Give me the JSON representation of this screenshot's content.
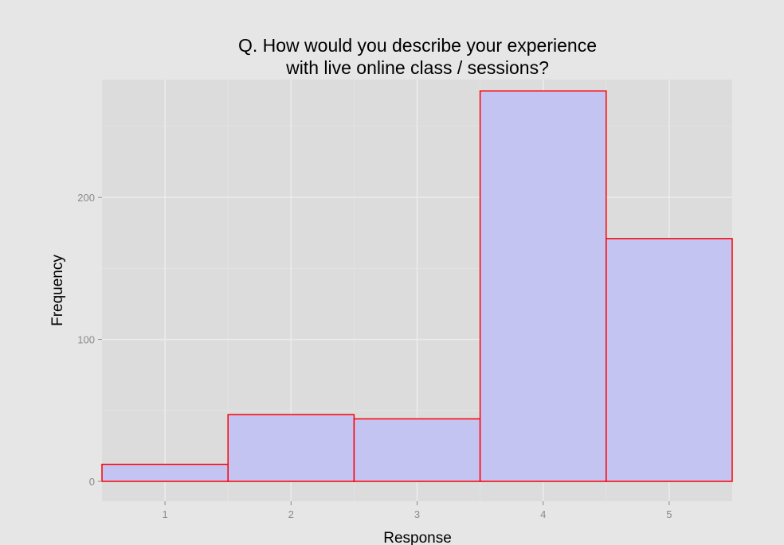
{
  "chart_data": {
    "type": "bar",
    "title": [
      "Q. How would you describe your experience",
      "with live online class / sessions?"
    ],
    "xlabel": "Response",
    "ylabel": "Frequency",
    "categories": [
      "1",
      "2",
      "3",
      "4",
      "5"
    ],
    "values": [
      12,
      47,
      44,
      275,
      171
    ],
    "x_ticks": [
      "1",
      "2",
      "3",
      "4",
      "5"
    ],
    "y_ticks": [
      0,
      100,
      200
    ],
    "xlim": [
      0.5,
      5.5
    ],
    "ylim": [
      -14,
      283
    ],
    "grid": true,
    "legend": "none",
    "colors": {
      "background": "#e6e6e6",
      "panel": "#dcdcdc",
      "grid_major": "#ececec",
      "grid_minor": "#e3e3e3",
      "bar_fill": "#c1c1f4",
      "bar_border": "#ff0000",
      "tick_text": "#8a8a8a",
      "tick_mark": "#8a8a8a"
    }
  }
}
